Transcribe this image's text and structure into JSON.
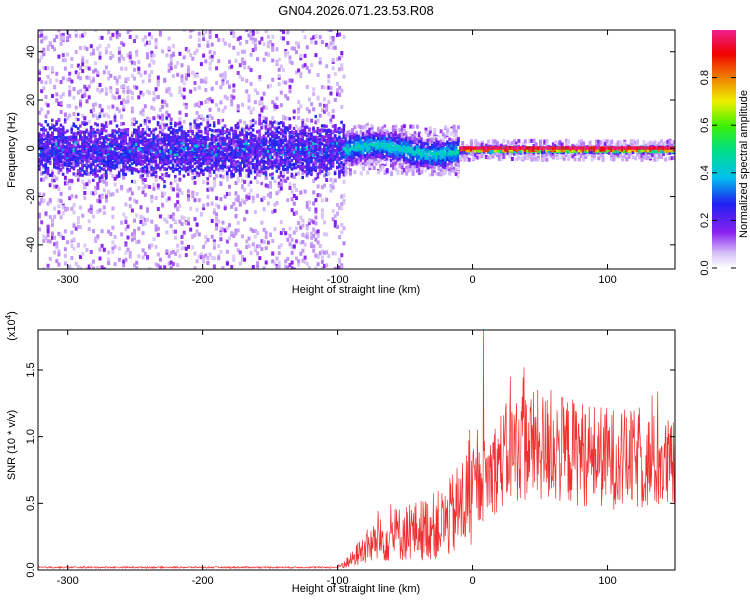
{
  "title": "GN04.2026.071.23.53.R08",
  "chart_data": [
    {
      "type": "heatmap",
      "title": "GN04.2026.071.23.53.R08",
      "xlabel": "Height of straight line (km)",
      "ylabel": "Frequency (Hz)",
      "xlim": [
        -322,
        150
      ],
      "ylim": [
        -50,
        49
      ],
      "xticks": [
        -300,
        -200,
        -100,
        0,
        100
      ],
      "yticks": [
        -40,
        -20,
        0,
        20,
        40
      ],
      "xticklabels": [
        "-300",
        "-200",
        "-100",
        "0",
        "100"
      ],
      "yticklabels": [
        "-40",
        "-20",
        "0",
        "20",
        "40"
      ],
      "colorbar": {
        "label": "Normalized spectral amplitude",
        "range": [
          0,
          1
        ],
        "ticks": [
          0.0,
          0.2,
          0.4,
          0.6,
          0.8
        ],
        "ticklabels": [
          "0.0",
          "0.2",
          "0.4",
          "0.6",
          "0.8"
        ],
        "colormap": "white-purple-blue-cyan-green-yellow-red-pink"
      },
      "description_regions": [
        {
          "x_range": [
            -322,
            -95
          ],
          "freq_band_hz": [
            -8,
            8
          ],
          "level": 0.15,
          "noise_spread_hz": 50
        },
        {
          "x_range": [
            -95,
            -10
          ],
          "freq_band_hz": [
            -5,
            6
          ],
          "level": 0.45,
          "noise_spread_hz": 10
        },
        {
          "x_range": [
            -10,
            150
          ],
          "freq_band_hz": [
            -1,
            1
          ],
          "level": 0.95,
          "noise_spread_hz": 4
        }
      ]
    },
    {
      "type": "line",
      "xlabel": "Height of straight line (km)",
      "ylabel": "SNR (10 * v/v)",
      "ylabel_multiplier": "(x10",
      "ylabel_multiplier_exp": "4",
      "ylabel_multiplier_close": ")",
      "xlim": [
        -322,
        150
      ],
      "ylim": [
        0,
        1.8
      ],
      "xticks": [
        -300,
        -200,
        -100,
        0,
        100
      ],
      "yticks": [
        0.0,
        0.5,
        1.0,
        1.5
      ],
      "xticklabels": [
        "-300",
        "-200",
        "-100",
        "0",
        "100"
      ],
      "yticklabels": [
        "0.0",
        "0.5",
        "1.0",
        "1.5"
      ],
      "series": [
        {
          "name": "SNR",
          "color": "#f03030",
          "envelope": [
            {
              "x": -322,
              "y": 0.02
            },
            {
              "x": -100,
              "y": 0.02
            },
            {
              "x": -90,
              "y": 0.08
            },
            {
              "x": -80,
              "y": 0.18
            },
            {
              "x": -60,
              "y": 0.28
            },
            {
              "x": -40,
              "y": 0.32
            },
            {
              "x": -20,
              "y": 0.38
            },
            {
              "x": 0,
              "y": 0.62
            },
            {
              "x": 10,
              "y": 0.72
            },
            {
              "x": 20,
              "y": 0.85
            },
            {
              "x": 30,
              "y": 0.95
            },
            {
              "x": 40,
              "y": 0.98
            },
            {
              "x": 60,
              "y": 0.95
            },
            {
              "x": 80,
              "y": 0.92
            },
            {
              "x": 100,
              "y": 0.88
            },
            {
              "x": 120,
              "y": 0.86
            },
            {
              "x": 140,
              "y": 0.84
            },
            {
              "x": 150,
              "y": 0.8
            }
          ],
          "peaks": [
            {
              "x": 8,
              "y": 1.8
            },
            {
              "x": 38,
              "y": 1.52
            },
            {
              "x": 28,
              "y": 1.45
            },
            {
              "x": 58,
              "y": 1.35
            },
            {
              "x": 75,
              "y": 1.25
            },
            {
              "x": -2,
              "y": 1.05
            }
          ]
        }
      ]
    }
  ]
}
